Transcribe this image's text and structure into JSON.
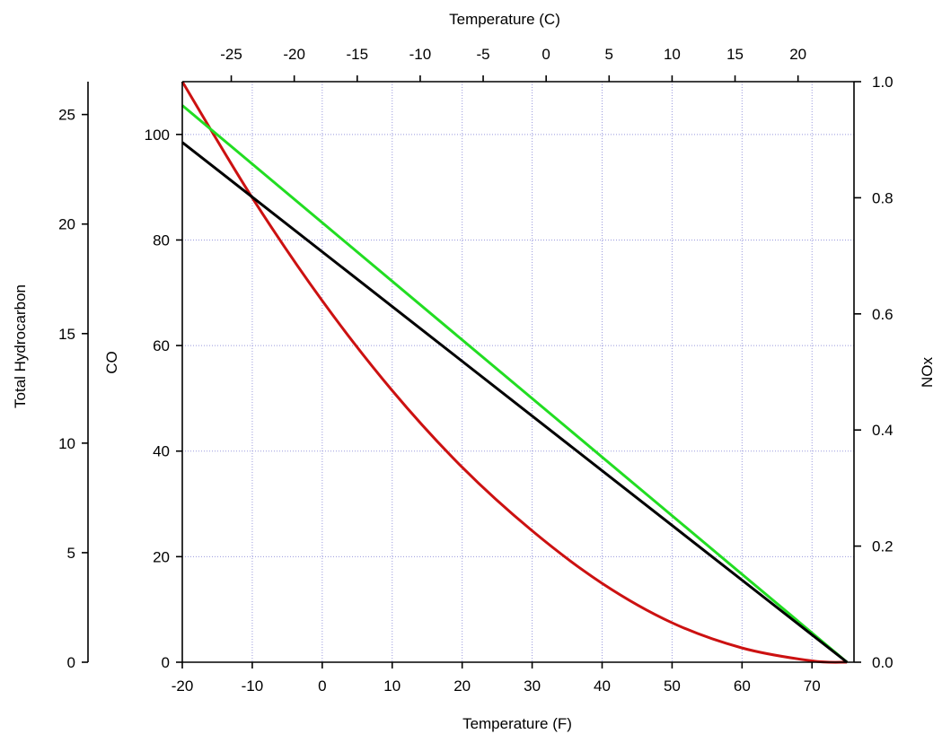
{
  "chart_data": {
    "type": "line",
    "xlabel": "Temperature (F)",
    "x2label": "Temperature (C)",
    "ylabel_co": "CO",
    "ylabel_thc": "Total Hydrocarbon",
    "ylabel_nox": "NOx",
    "xlim": [
      -20,
      76
    ],
    "ylim_co": [
      0,
      110
    ],
    "ylim_thc": [
      0,
      26.5
    ],
    "ylim_nox": [
      0,
      1.0
    ],
    "x_ticks": [
      -20,
      -10,
      0,
      10,
      20,
      30,
      40,
      50,
      60,
      70
    ],
    "x2_ticks": [
      -25,
      -20,
      -15,
      -10,
      -5,
      0,
      5,
      10,
      15,
      20
    ],
    "co_ticks": [
      0,
      20,
      40,
      60,
      80,
      100
    ],
    "thc_ticks": [
      0,
      5,
      10,
      15,
      20,
      25
    ],
    "nox_ticks": [
      "0.0",
      "0.2",
      "0.4",
      "0.6",
      "0.8",
      "1.0"
    ],
    "grid": true,
    "series": [
      {
        "axis": "thc",
        "color": "#cc1111",
        "x": [
          -20,
          -10,
          0,
          10,
          20,
          30,
          40,
          50,
          60,
          70,
          75
        ],
        "values": [
          26.5,
          21.2,
          16.5,
          12.4,
          8.9,
          6.0,
          3.6,
          1.8,
          0.65,
          0.06,
          0.0
        ]
      },
      {
        "axis": "co",
        "color": "#22dd22",
        "x": [
          -20,
          75
        ],
        "values": [
          105.5,
          0
        ]
      },
      {
        "axis": "co",
        "color": "#000000",
        "x": [
          -20,
          75
        ],
        "values": [
          98.5,
          0
        ]
      }
    ]
  }
}
